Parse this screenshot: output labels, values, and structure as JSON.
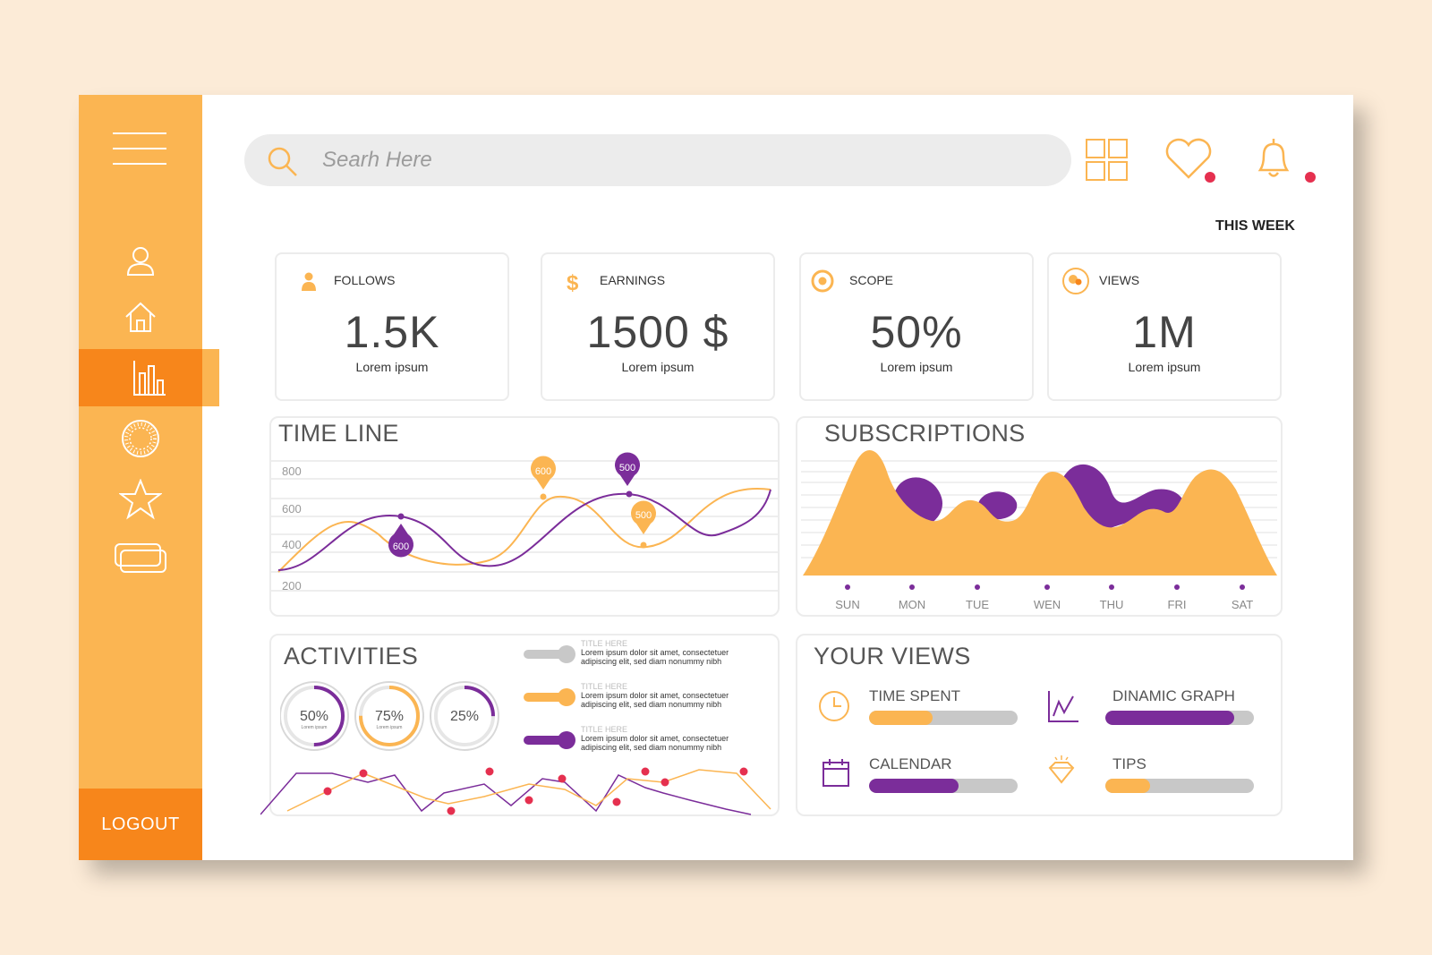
{
  "search": {
    "placeholder": "Searh Here"
  },
  "period": "THIS WEEK",
  "sidebar": {
    "logout": "LOGOUT"
  },
  "stats": [
    {
      "label": "FOLLOWS",
      "value": "1.5K",
      "sub": "Lorem ipsum"
    },
    {
      "label": "EARNINGS",
      "value": "1500 $",
      "sub": "Lorem ipsum"
    },
    {
      "label": "SCOPE",
      "value": "50%",
      "sub": "Lorem ipsum"
    },
    {
      "label": "VIEWS",
      "value": "1M",
      "sub": "Lorem ipsum"
    }
  ],
  "timeline": {
    "title": "TIME LINE",
    "y_ticks": [
      "800",
      "600",
      "400",
      "200"
    ],
    "markers": [
      "600",
      "500",
      "500",
      "600"
    ]
  },
  "subscriptions": {
    "title": "SUBSCRIPTIONS",
    "days": [
      "SUN",
      "MON",
      "TUE",
      "WEN",
      "THU",
      "FRI",
      "SAT"
    ]
  },
  "activities": {
    "title": "ACTIVITIES",
    "rings": [
      {
        "label": "50%",
        "sub": "Lorem ipsum",
        "fraction": 0.5,
        "color": "#7b2d9a"
      },
      {
        "label": "75%",
        "sub": "Lorem ipsum",
        "fraction": 0.75,
        "color": "#fbb552"
      },
      {
        "label": "25%",
        "sub": "",
        "fraction": 0.25,
        "color": "#7b2d9a"
      }
    ],
    "items": [
      {
        "title": "TITLE HERE",
        "line1": "Lorem ipsum dolor sit amet, consectetuer",
        "line2": "adipiscing elit, sed diam nonummy nibh",
        "color": "#c8c8c8"
      },
      {
        "title": "TITLE HERE",
        "line1": "Lorem ipsum dolor sit amet, consectetuer",
        "line2": "adipiscing elit, sed diam nonummy nibh",
        "color": "#fbb552"
      },
      {
        "title": "TITLE HERE",
        "line1": "Lorem ipsum dolor sit amet, consectetuer",
        "line2": "adipiscing elit, sed diam nonummy nibh",
        "color": "#7b2d9a"
      }
    ]
  },
  "views": {
    "title": "YOUR VIEWS",
    "items": [
      {
        "label": "TIME SPENT",
        "fraction": 0.43,
        "color": "#fbb552",
        "icon": "clock-icon"
      },
      {
        "label": "DINAMIC GRAPH",
        "fraction": 0.87,
        "color": "#7b2d9a",
        "icon": "graph-icon"
      },
      {
        "label": "CALENDAR",
        "fraction": 0.6,
        "color": "#7b2d9a",
        "icon": "calendar-icon"
      },
      {
        "label": "TIPS",
        "fraction": 0.3,
        "color": "#fbb552",
        "icon": "diamond-icon"
      }
    ]
  },
  "colors": {
    "orange": "#fbb552",
    "dark_orange": "#f7861b",
    "purple": "#7b2d9a",
    "red": "#e5304f"
  }
}
